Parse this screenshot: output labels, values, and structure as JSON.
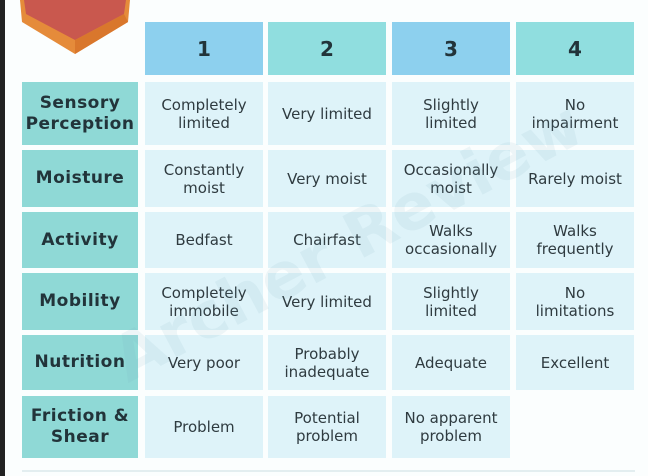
{
  "table": {
    "header": [
      "1",
      "2",
      "3",
      "4"
    ],
    "rows": [
      {
        "label": "Sensory Perception",
        "cells": [
          "Completely limited",
          "Very limited",
          "Slightly limited",
          "No impairment"
        ]
      },
      {
        "label": "Moisture",
        "cells": [
          "Constantly moist",
          "Very moist",
          "Occasionally moist",
          "Rarely moist"
        ]
      },
      {
        "label": "Activity",
        "cells": [
          "Bedfast",
          "Chairfast",
          "Walks occasionally",
          "Walks frequently"
        ]
      },
      {
        "label": "Mobility",
        "cells": [
          "Completely immobile",
          "Very limited",
          "Slightly limited",
          "No limitations"
        ]
      },
      {
        "label": "Nutrition",
        "cells": [
          "Very poor",
          "Probably inadequate",
          "Adequate",
          "Excellent"
        ]
      },
      {
        "label": "Friction & Shear",
        "cells": [
          "Problem",
          "Potential problem",
          "No apparent problem"
        ]
      }
    ]
  },
  "watermark": "Archer Review"
}
